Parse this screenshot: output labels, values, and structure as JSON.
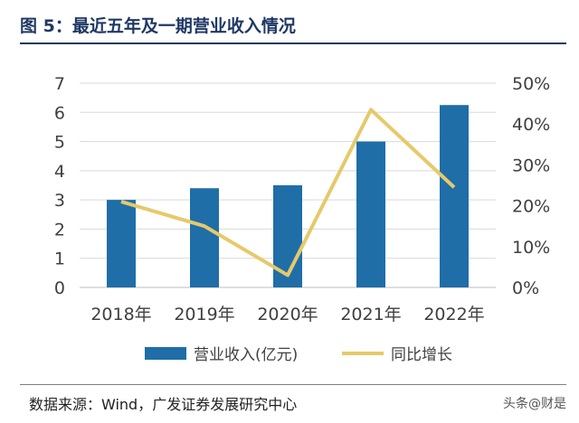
{
  "figure": {
    "title": "图 5：最近五年及一期营业收入情况",
    "source": "数据来源：Wind，广发证券发展研究中心",
    "watermark": "头条@财是"
  },
  "chart_data": {
    "type": "bar",
    "categories": [
      "2018年",
      "2019年",
      "2020年",
      "2021年",
      "2022年"
    ],
    "series": [
      {
        "name": "营业收入(亿元)",
        "type": "bar",
        "axis": "left",
        "color": "#1f6ea8",
        "values": [
          3.0,
          3.4,
          3.5,
          5.0,
          6.25
        ]
      },
      {
        "name": "同比增长",
        "type": "line",
        "axis": "right",
        "color": "#e6c96a",
        "values": [
          0.21,
          0.15,
          0.03,
          0.435,
          0.245
        ]
      }
    ],
    "y_left": {
      "min": 0,
      "max": 7,
      "ticks": [
        "0",
        "1",
        "2",
        "3",
        "4",
        "5",
        "6",
        "7"
      ]
    },
    "y_right": {
      "min": 0,
      "max": 0.5,
      "ticks": [
        "0%",
        "10%",
        "20%",
        "30%",
        "40%",
        "50%"
      ]
    },
    "grid": true,
    "legend_position": "bottom"
  }
}
